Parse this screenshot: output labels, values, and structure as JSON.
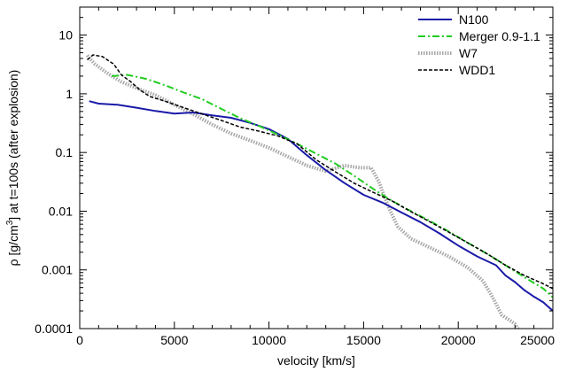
{
  "chart_data": {
    "type": "line",
    "xlabel": "velocity [km/s]",
    "ylabel": {
      "prefix": "ρ [g/cm",
      "superscript": "3",
      "suffix": "]  at  t=100s  (after explosion)"
    },
    "xlim": [
      0,
      25000
    ],
    "ylim": [
      0.0001,
      30
    ],
    "yscale": "log",
    "grid": false,
    "legend_position": "top-right",
    "x_ticks": [
      {
        "value": 0,
        "label": "0"
      },
      {
        "value": 5000,
        "label": "5000"
      },
      {
        "value": 10000,
        "label": "10000"
      },
      {
        "value": 15000,
        "label": "15000"
      },
      {
        "value": 20000,
        "label": "20000"
      },
      {
        "value": 25000,
        "label": "25000"
      }
    ],
    "y_ticks": [
      {
        "value": 10,
        "label": "10"
      },
      {
        "value": 1,
        "label": "1"
      },
      {
        "value": 0.1,
        "label": "0.1"
      },
      {
        "value": 0.01,
        "label": "0.01"
      },
      {
        "value": 0.001,
        "label": "0.001"
      },
      {
        "value": 0.0001,
        "label": "0.0001"
      }
    ],
    "series": [
      {
        "name": "N100",
        "color": "#1a1aa8",
        "style": "solid",
        "x": [
          500,
          1000,
          2000,
          3000,
          4000,
          5000,
          6000,
          7000,
          8000,
          9000,
          10000,
          11000,
          12000,
          13000,
          14000,
          15000,
          16000,
          17000,
          18000,
          19000,
          20000,
          21000,
          22000,
          22500,
          23000,
          23500,
          24000,
          24500,
          25000
        ],
        "y": [
          0.75,
          0.68,
          0.65,
          0.58,
          0.51,
          0.46,
          0.48,
          0.43,
          0.39,
          0.32,
          0.25,
          0.17,
          0.09,
          0.05,
          0.03,
          0.019,
          0.014,
          0.0095,
          0.0065,
          0.0042,
          0.0026,
          0.0017,
          0.0012,
          0.0008,
          0.00062,
          0.00045,
          0.00035,
          0.00028,
          0.0002
        ]
      },
      {
        "name": "Merger 0.9-1.1",
        "color": "#22cc22",
        "style": "dashdot",
        "x": [
          1700,
          2500,
          3500,
          4500,
          5500,
          6500,
          7500,
          8500,
          9500,
          10500,
          11500,
          12500,
          13500,
          14500,
          15500,
          16500,
          17500,
          18500,
          19500,
          20500,
          21500,
          22500,
          23500,
          24500,
          25000
        ],
        "y": [
          2.0,
          2.1,
          1.8,
          1.4,
          1.05,
          0.8,
          0.55,
          0.38,
          0.28,
          0.2,
          0.14,
          0.095,
          0.065,
          0.04,
          0.024,
          0.015,
          0.01,
          0.0068,
          0.0045,
          0.0029,
          0.0019,
          0.0012,
          0.00075,
          0.00048,
          0.00034
        ]
      },
      {
        "name": "W7",
        "color": "#a6a6a6",
        "style": "thick-dotted",
        "x": [
          400,
          800,
          1500,
          2200,
          3000,
          4000,
          5000,
          6000,
          7000,
          8000,
          9000,
          10000,
          11000,
          12000,
          13000,
          14000,
          14800,
          15400,
          15800,
          16300,
          16800,
          17500,
          18500,
          19500,
          20500,
          21300,
          21800,
          22300,
          22700,
          23000,
          23150
        ],
        "y": [
          4.5,
          3.2,
          2.2,
          1.6,
          1.25,
          0.95,
          0.65,
          0.45,
          0.3,
          0.21,
          0.16,
          0.12,
          0.085,
          0.06,
          0.048,
          0.06,
          0.055,
          0.055,
          0.032,
          0.012,
          0.0055,
          0.0034,
          0.0024,
          0.0017,
          0.0011,
          0.00065,
          0.00035,
          0.00017,
          0.00014,
          0.00012,
          0.0001
        ]
      },
      {
        "name": "WDD1",
        "color": "#000000",
        "style": "dashed",
        "x": [
          400,
          700,
          1200,
          1800,
          2200,
          2700,
          3200,
          3700,
          4500,
          5500,
          6500,
          7500,
          8500,
          9500,
          10500,
          11500,
          12500,
          13500,
          14500,
          15500,
          16500,
          17500,
          18500,
          19500,
          20500,
          21500,
          22500,
          23500,
          24500,
          25000
        ],
        "y": [
          3.8,
          4.6,
          4.3,
          3.2,
          2.1,
          1.6,
          1.15,
          0.9,
          0.75,
          0.58,
          0.45,
          0.35,
          0.27,
          0.23,
          0.19,
          0.14,
          0.075,
          0.047,
          0.03,
          0.021,
          0.015,
          0.0098,
          0.0066,
          0.0044,
          0.0029,
          0.0019,
          0.0012,
          0.0008,
          0.00058,
          0.00048
        ]
      }
    ]
  }
}
